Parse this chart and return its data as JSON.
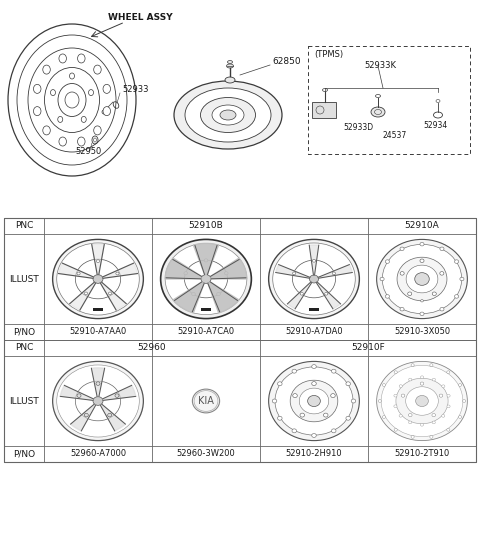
{
  "bg_color": "#ffffff",
  "line_color": "#3a3a3a",
  "text_color": "#1a1a1a",
  "table_border": "#666666",
  "top": {
    "wheel_assy": "WHEEL ASSY",
    "num_62850": "62850",
    "num_52933": "52933",
    "num_52950": "52950",
    "tpms": "(TPMS)",
    "num_52933K": "52933K",
    "num_52933D": "52933D",
    "num_52934": "52934",
    "num_24537": "24537"
  },
  "table": {
    "col0_label": [
      "PNC",
      "ILLUST",
      "P/NO"
    ],
    "row1_pnc_labels": [
      "52910B",
      "52910A"
    ],
    "row1_pno": [
      "52910-A7AA0",
      "52910-A7CA0",
      "52910-A7DA0",
      "52910-3X050"
    ],
    "row2_pnc_labels": [
      "52960",
      "52910F"
    ],
    "row2_pno": [
      "52960-A7000",
      "52960-3W200",
      "52910-2H910",
      "52910-2T910"
    ]
  }
}
